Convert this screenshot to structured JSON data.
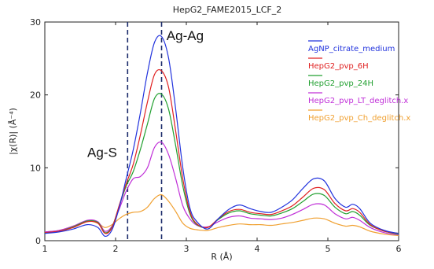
{
  "chart_data": {
    "type": "line",
    "title": "HepG2_FAME2015_LCF_2",
    "xlabel": "R (Å)",
    "ylabel": "|χ(R)| (Å⁻⁴)",
    "xlim": [
      1,
      6
    ],
    "ylim": [
      0,
      30
    ],
    "xticks": [
      1,
      2,
      3,
      4,
      5,
      6
    ],
    "yticks": [
      0,
      10,
      20,
      30
    ],
    "grid": false,
    "legend": "top-right",
    "x": [
      1.0,
      1.2,
      1.4,
      1.6,
      1.75,
      1.85,
      1.95,
      2.05,
      2.15,
      2.25,
      2.35,
      2.45,
      2.55,
      2.65,
      2.75,
      2.85,
      2.95,
      3.05,
      3.15,
      3.3,
      3.45,
      3.6,
      3.75,
      3.9,
      4.05,
      4.2,
      4.35,
      4.5,
      4.65,
      4.8,
      4.95,
      5.1,
      5.25,
      5.35,
      5.45,
      5.6,
      5.8,
      6.0
    ],
    "series": [
      {
        "name": "AgNP_citrate_medium",
        "color": "#2233dd",
        "values": [
          1.0,
          1.2,
          1.6,
          2.2,
          1.8,
          0.6,
          1.5,
          4.5,
          8.5,
          12.5,
          17.5,
          23.0,
          27.2,
          28.0,
          25.0,
          18.0,
          10.0,
          4.5,
          2.6,
          1.6,
          3.0,
          4.3,
          4.9,
          4.4,
          4.0,
          3.9,
          4.6,
          5.6,
          7.2,
          8.5,
          8.2,
          5.8,
          4.6,
          5.0,
          4.4,
          2.4,
          1.4,
          1.0
        ]
      },
      {
        "name": "HepG2_pvp_6H",
        "color": "#e02020",
        "values": [
          1.1,
          1.3,
          1.8,
          2.6,
          2.4,
          1.0,
          1.8,
          4.8,
          7.8,
          10.5,
          14.5,
          19.0,
          22.8,
          23.3,
          21.0,
          15.0,
          8.5,
          4.0,
          2.3,
          1.8,
          3.0,
          4.0,
          4.3,
          3.9,
          3.7,
          3.6,
          4.1,
          4.8,
          6.0,
          7.2,
          7.0,
          5.1,
          4.1,
          4.4,
          3.9,
          2.2,
          1.3,
          1.0
        ]
      },
      {
        "name": "HepG2_pvp_24H",
        "color": "#22a030",
        "values": [
          1.1,
          1.3,
          1.9,
          2.7,
          2.5,
          1.1,
          1.9,
          4.7,
          7.5,
          9.5,
          12.5,
          16.0,
          19.5,
          20.1,
          18.0,
          13.0,
          7.5,
          3.7,
          2.2,
          1.8,
          2.9,
          3.8,
          4.1,
          3.7,
          3.5,
          3.4,
          3.8,
          4.4,
          5.4,
          6.4,
          6.2,
          4.6,
          3.7,
          4.0,
          3.5,
          2.1,
          1.3,
          0.9
        ]
      },
      {
        "name": "HepG2_pvp_LT_deglitch.x",
        "color": "#c030d8",
        "values": [
          1.2,
          1.4,
          2.0,
          2.8,
          2.6,
          1.3,
          2.0,
          4.3,
          6.8,
          8.5,
          8.8,
          10.0,
          12.8,
          13.5,
          11.8,
          8.5,
          4.8,
          3.0,
          2.1,
          1.9,
          2.6,
          3.2,
          3.4,
          3.1,
          3.0,
          2.9,
          3.1,
          3.6,
          4.3,
          5.0,
          4.9,
          3.7,
          3.0,
          3.2,
          2.8,
          1.8,
          1.1,
          0.8
        ]
      },
      {
        "name": "HepG2_pvp_Ch_deglitch.x",
        "color": "#f0a030",
        "values": [
          1.2,
          1.4,
          2.0,
          2.7,
          2.4,
          1.8,
          2.2,
          3.0,
          3.6,
          3.9,
          4.0,
          4.6,
          5.8,
          6.3,
          5.4,
          4.0,
          2.4,
          1.7,
          1.5,
          1.4,
          1.8,
          2.1,
          2.3,
          2.2,
          2.2,
          2.1,
          2.3,
          2.5,
          2.8,
          3.1,
          3.0,
          2.4,
          2.0,
          2.1,
          1.9,
          1.3,
          0.9,
          0.7
        ]
      }
    ],
    "reference_lines": [
      {
        "x": 2.17,
        "style": "dashed",
        "color": "#1a2a6a"
      },
      {
        "x": 2.65,
        "style": "dashed",
        "color": "#1a2a6a"
      }
    ],
    "annotations": [
      {
        "text": "Ag-S",
        "x": 1.6,
        "y": 11.5
      },
      {
        "text": "Ag-Ag",
        "x": 2.72,
        "y": 27.5
      }
    ]
  }
}
